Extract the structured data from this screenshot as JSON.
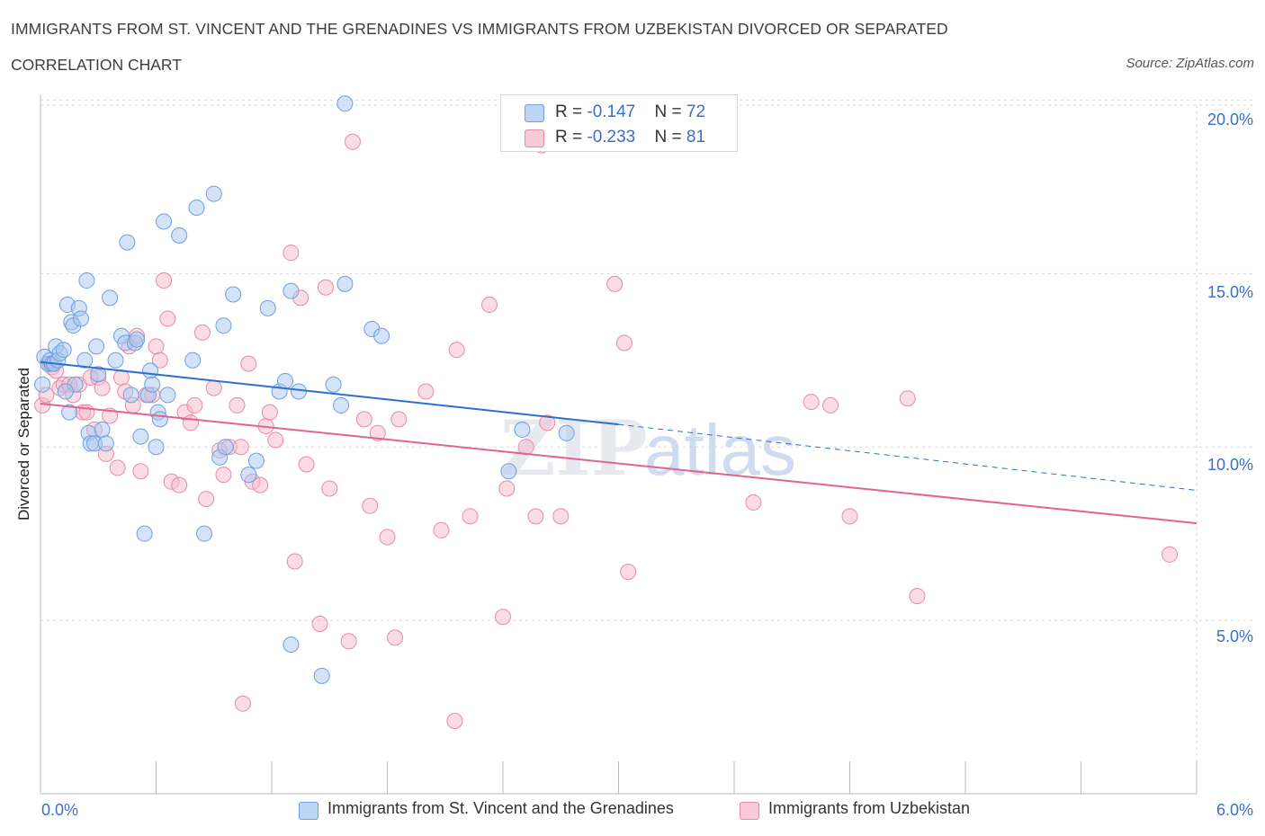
{
  "header": {
    "title": "IMMIGRANTS FROM ST. VINCENT AND THE GRENADINES VS IMMIGRANTS FROM UZBEKISTAN DIVORCED OR SEPARATED",
    "subtitle": "CORRELATION CHART",
    "source": "Source: ZipAtlas.com"
  },
  "legend_top": {
    "blue": {
      "r_label": "R = ",
      "r_value": "-0.147",
      "n_label": "N = ",
      "n_value": "72"
    },
    "pink": {
      "r_label": "R = ",
      "r_value": "-0.233",
      "n_label": "N = ",
      "n_value": "81"
    }
  },
  "watermark": {
    "zip": "ZIP",
    "atlas": "atlas"
  },
  "colors": {
    "blue_fill": "#a9c8f0",
    "blue_stroke": "#6f9fe0",
    "blue_line": "#2f6fd0",
    "pink_fill": "#f6b9cc",
    "pink_stroke": "#e98aa8",
    "pink_line": "#e0648f",
    "tick_text": "#3b6fc9",
    "grid": "#d8d8d8"
  },
  "chart_data": {
    "type": "scatter",
    "title": "IMMIGRANTS FROM ST. VINCENT AND THE GRENADINES VS IMMIGRANTS FROM UZBEKISTAN DIVORCED OR SEPARATED",
    "subtitle": "CORRELATION CHART",
    "xlabel": "",
    "ylabel": "Divorced or Separated",
    "xlim": [
      0,
      6
    ],
    "ylim": [
      0,
      20.4
    ],
    "x_tick_labels": [
      "0.0%",
      "6.0%"
    ],
    "y_ticks": [
      5,
      10,
      15,
      20
    ],
    "y_tick_labels": [
      "5.0%",
      "10.0%",
      "15.0%",
      "20.0%"
    ],
    "grid": true,
    "legend_position": "bottom",
    "series": [
      {
        "name": "Immigrants from St. Vincent and the Grenadines",
        "color": "#a9c8f0",
        "r": -0.147,
        "n": 72,
        "trend": {
          "x_start": 0,
          "y_start": 12.45,
          "x_solid_end": 3.0,
          "y_solid_end": 10.65,
          "x_end": 6.0,
          "y_end": 8.75
        },
        "points": [
          [
            0.02,
            12.6
          ],
          [
            0.04,
            12.4
          ],
          [
            0.05,
            12.5
          ],
          [
            0.06,
            12.4
          ],
          [
            0.07,
            12.4
          ],
          [
            0.08,
            12.9
          ],
          [
            0.09,
            12.5
          ],
          [
            0.1,
            12.7
          ],
          [
            0.12,
            12.8
          ],
          [
            0.14,
            14.1
          ],
          [
            0.16,
            13.6
          ],
          [
            0.17,
            13.5
          ],
          [
            0.18,
            11.8
          ],
          [
            0.2,
            14.0
          ],
          [
            0.21,
            13.7
          ],
          [
            0.23,
            12.5
          ],
          [
            0.24,
            14.8
          ],
          [
            0.25,
            10.4
          ],
          [
            0.26,
            10.1
          ],
          [
            0.28,
            10.1
          ],
          [
            0.29,
            12.9
          ],
          [
            0.3,
            12.1
          ],
          [
            0.32,
            10.5
          ],
          [
            0.34,
            10.1
          ],
          [
            0.36,
            14.3
          ],
          [
            0.39,
            12.5
          ],
          [
            0.42,
            13.2
          ],
          [
            0.44,
            13.0
          ],
          [
            0.45,
            15.9
          ],
          [
            0.47,
            11.5
          ],
          [
            0.49,
            13.0
          ],
          [
            0.5,
            13.1
          ],
          [
            0.52,
            10.3
          ],
          [
            0.54,
            7.5
          ],
          [
            0.56,
            11.5
          ],
          [
            0.57,
            12.2
          ],
          [
            0.58,
            11.8
          ],
          [
            0.6,
            10.0
          ],
          [
            0.61,
            11.0
          ],
          [
            0.62,
            10.8
          ],
          [
            0.64,
            16.5
          ],
          [
            0.66,
            11.5
          ],
          [
            0.72,
            16.1
          ],
          [
            0.79,
            12.5
          ],
          [
            0.81,
            16.9
          ],
          [
            0.85,
            7.5
          ],
          [
            0.9,
            17.3
          ],
          [
            0.93,
            9.7
          ],
          [
            0.95,
            13.5
          ],
          [
            0.96,
            10.0
          ],
          [
            1.0,
            14.4
          ],
          [
            1.08,
            9.2
          ],
          [
            1.12,
            9.6
          ],
          [
            1.18,
            14.0
          ],
          [
            1.24,
            11.6
          ],
          [
            1.27,
            11.9
          ],
          [
            1.3,
            14.5
          ],
          [
            1.3,
            4.3
          ],
          [
            1.34,
            11.6
          ],
          [
            1.46,
            3.4
          ],
          [
            1.52,
            11.8
          ],
          [
            1.56,
            11.2
          ],
          [
            1.58,
            14.7
          ],
          [
            1.58,
            19.9
          ],
          [
            1.72,
            13.4
          ],
          [
            1.77,
            13.2
          ],
          [
            0.01,
            11.8
          ],
          [
            0.13,
            11.6
          ],
          [
            0.15,
            11.0
          ],
          [
            2.43,
            9.3
          ],
          [
            2.5,
            10.5
          ],
          [
            2.73,
            10.4
          ]
        ]
      },
      {
        "name": "Immigrants from Uzbekistan",
        "color": "#f6b9cc",
        "r": -0.233,
        "n": 81,
        "trend": {
          "x_start": 0,
          "y_start": 11.25,
          "x_end": 6.0,
          "y_end": 7.8
        },
        "points": [
          [
            0.01,
            11.2
          ],
          [
            0.03,
            11.5
          ],
          [
            0.05,
            12.4
          ],
          [
            0.06,
            12.3
          ],
          [
            0.08,
            12.2
          ],
          [
            0.1,
            11.7
          ],
          [
            0.12,
            11.8
          ],
          [
            0.15,
            11.8
          ],
          [
            0.17,
            11.5
          ],
          [
            0.2,
            11.8
          ],
          [
            0.22,
            11.0
          ],
          [
            0.24,
            11.0
          ],
          [
            0.26,
            12.0
          ],
          [
            0.28,
            10.5
          ],
          [
            0.3,
            12.0
          ],
          [
            0.32,
            11.7
          ],
          [
            0.34,
            9.8
          ],
          [
            0.36,
            10.9
          ],
          [
            0.4,
            9.4
          ],
          [
            0.42,
            12.0
          ],
          [
            0.44,
            11.6
          ],
          [
            0.46,
            12.9
          ],
          [
            0.48,
            11.2
          ],
          [
            0.5,
            13.2
          ],
          [
            0.52,
            9.3
          ],
          [
            0.55,
            11.5
          ],
          [
            0.58,
            11.5
          ],
          [
            0.6,
            12.9
          ],
          [
            0.62,
            12.5
          ],
          [
            0.64,
            14.8
          ],
          [
            0.66,
            13.7
          ],
          [
            0.68,
            9.0
          ],
          [
            0.72,
            8.9
          ],
          [
            0.75,
            11.0
          ],
          [
            0.78,
            10.7
          ],
          [
            0.8,
            11.2
          ],
          [
            0.84,
            13.3
          ],
          [
            0.86,
            8.5
          ],
          [
            0.9,
            11.7
          ],
          [
            0.93,
            9.9
          ],
          [
            0.95,
            9.2
          ],
          [
            0.98,
            10.0
          ],
          [
            1.02,
            11.2
          ],
          [
            1.04,
            10.0
          ],
          [
            1.05,
            2.6
          ],
          [
            1.08,
            12.4
          ],
          [
            1.1,
            9.0
          ],
          [
            1.14,
            8.9
          ],
          [
            1.17,
            10.6
          ],
          [
            1.19,
            11.0
          ],
          [
            1.22,
            10.2
          ],
          [
            1.3,
            15.6
          ],
          [
            1.32,
            6.7
          ],
          [
            1.35,
            14.3
          ],
          [
            1.38,
            9.5
          ],
          [
            1.45,
            4.9
          ],
          [
            1.48,
            14.6
          ],
          [
            1.5,
            8.8
          ],
          [
            1.6,
            4.4
          ],
          [
            1.62,
            18.8
          ],
          [
            1.68,
            10.8
          ],
          [
            1.71,
            8.3
          ],
          [
            1.75,
            10.4
          ],
          [
            1.8,
            7.4
          ],
          [
            1.84,
            4.5
          ],
          [
            1.86,
            10.8
          ],
          [
            2.0,
            11.6
          ],
          [
            2.08,
            7.6
          ],
          [
            2.15,
            2.1
          ],
          [
            2.16,
            12.8
          ],
          [
            2.23,
            8.0
          ],
          [
            2.33,
            14.1
          ],
          [
            2.4,
            5.1
          ],
          [
            2.42,
            8.8
          ],
          [
            2.52,
            10.0
          ],
          [
            2.57,
            8.0
          ],
          [
            2.6,
            18.7
          ],
          [
            2.63,
            10.7
          ],
          [
            2.7,
            8.0
          ],
          [
            2.98,
            14.7
          ],
          [
            3.03,
            13.0
          ]
        ]
      }
    ],
    "extra_points_pink": [
      [
        3.05,
        6.4
      ],
      [
        3.7,
        8.4
      ],
      [
        4.0,
        11.3
      ],
      [
        4.1,
        11.2
      ],
      [
        4.2,
        8.0
      ],
      [
        4.5,
        11.4
      ],
      [
        4.55,
        5.7
      ],
      [
        5.86,
        6.9
      ]
    ]
  },
  "bottom_legend": {
    "item1": "Immigrants from St. Vincent and the Grenadines",
    "item2": "Immigrants from Uzbekistan"
  },
  "axes": {
    "ylabel": "Divorced or Separated",
    "x_left": "0.0%",
    "x_right": "6.0%",
    "y_ticks": [
      "5.0%",
      "10.0%",
      "15.0%",
      "20.0%"
    ]
  }
}
